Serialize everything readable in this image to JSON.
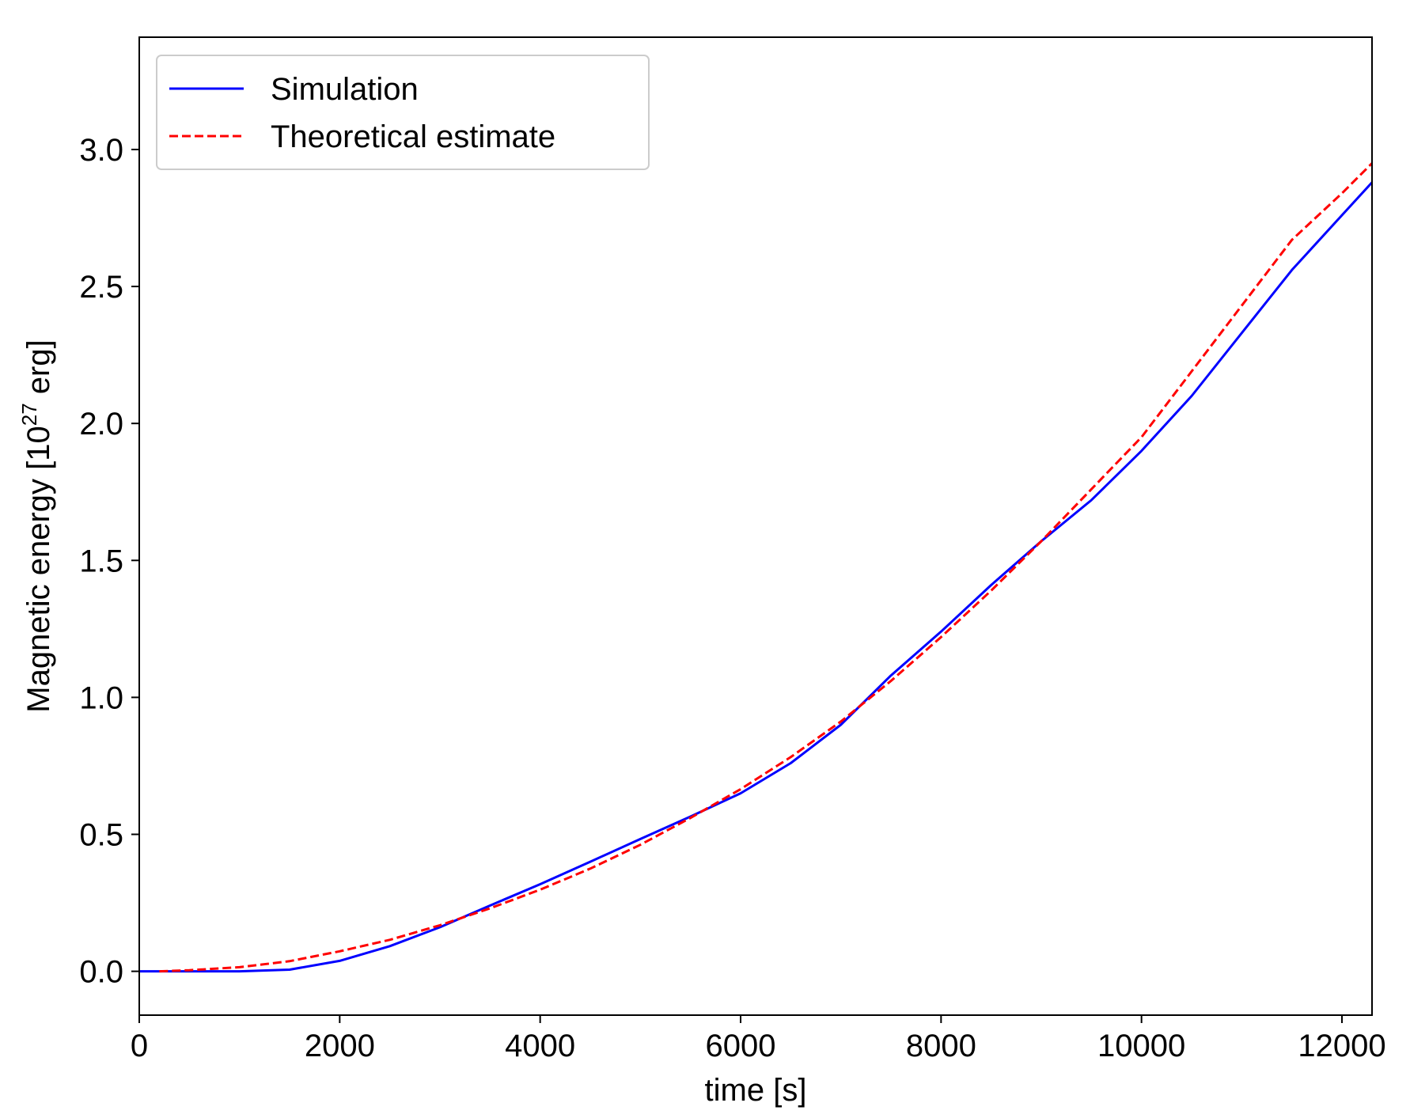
{
  "chart_data": {
    "type": "line",
    "xlabel": "time [s]",
    "ylabel": {
      "prefix": "Magnetic energy [10",
      "superscript": "27",
      "suffix": " erg]"
    },
    "xlim": [
      0,
      12300
    ],
    "ylim": [
      -0.16,
      3.41
    ],
    "xticks": [
      0,
      2000,
      4000,
      6000,
      8000,
      10000,
      12000
    ],
    "xtick_labels": [
      "0",
      "2000",
      "4000",
      "6000",
      "8000",
      "10000",
      "12000"
    ],
    "yticks": [
      0.0,
      0.5,
      1.0,
      1.5,
      2.0,
      2.5,
      3.0
    ],
    "ytick_labels": [
      "0.0",
      "0.5",
      "1.0",
      "1.5",
      "2.0",
      "2.5",
      "3.0"
    ],
    "grid": false,
    "legend": {
      "position": "top-left"
    },
    "series": [
      {
        "name": "Simulation",
        "color": "#0000ff",
        "style": "solid",
        "x": [
          0,
          500,
          1000,
          1500,
          2000,
          2500,
          3000,
          3500,
          4000,
          4500,
          5000,
          5500,
          6000,
          6500,
          7000,
          7500,
          8000,
          8500,
          9000,
          9500,
          10000,
          10500,
          11000,
          11500,
          12000,
          12300
        ],
        "y": [
          0.0,
          0.0,
          0.0,
          0.006,
          0.038,
          0.092,
          0.161,
          0.24,
          0.318,
          0.4,
          0.483,
          0.565,
          0.65,
          0.76,
          0.9,
          1.08,
          1.24,
          1.41,
          1.57,
          1.72,
          1.9,
          2.1,
          2.33,
          2.56,
          2.76,
          2.88
        ]
      },
      {
        "name": "Theoretical estimate",
        "color": "#ff0000",
        "style": "dashed",
        "x": [
          200,
          500,
          1000,
          1500,
          2000,
          2500,
          3000,
          3500,
          4000,
          4500,
          5000,
          5500,
          6000,
          6500,
          7000,
          7500,
          8000,
          8500,
          9000,
          9500,
          10000,
          10500,
          11000,
          11500,
          12000,
          12300
        ],
        "y": [
          0.0,
          0.004,
          0.015,
          0.037,
          0.073,
          0.115,
          0.168,
          0.23,
          0.298,
          0.375,
          0.462,
          0.56,
          0.665,
          0.782,
          0.912,
          1.06,
          1.22,
          1.39,
          1.57,
          1.76,
          1.95,
          2.19,
          2.43,
          2.67,
          2.84,
          2.95
        ]
      }
    ]
  }
}
